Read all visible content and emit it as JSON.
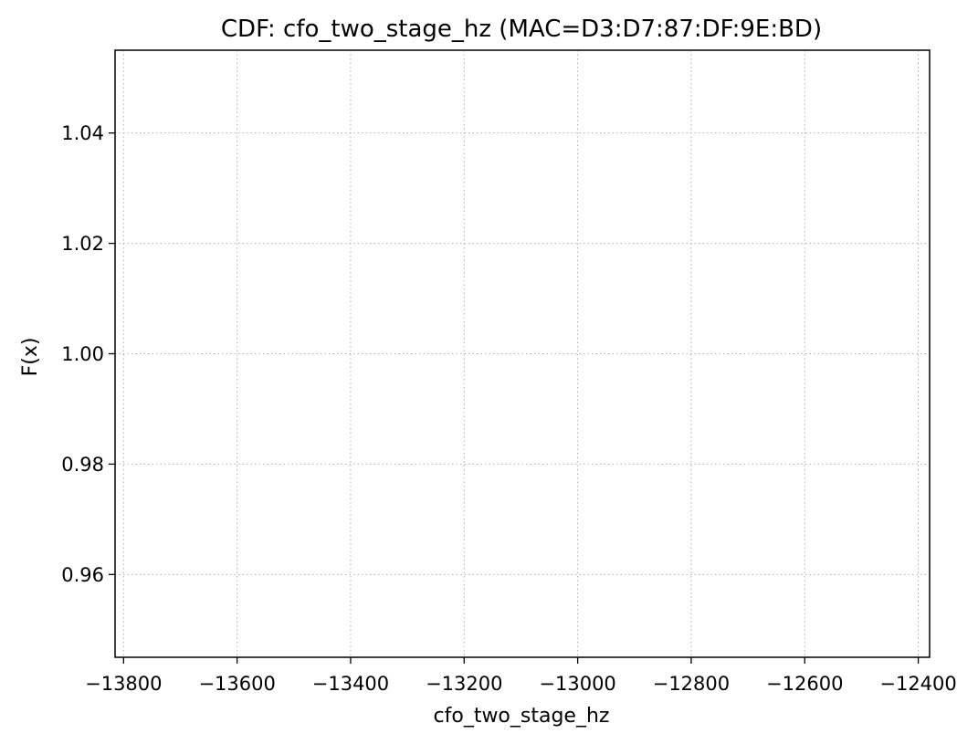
{
  "chart_data": {
    "type": "line",
    "title": "CDF: cfo_two_stage_hz (MAC=D3:D7:87:DF:9E:BD)",
    "xlabel": "cfo_two_stage_hz",
    "ylabel": "F(x)",
    "xlim": [
      -13815,
      -12380
    ],
    "ylim": [
      0.945,
      1.055
    ],
    "xticks": [
      -13800,
      -13600,
      -13400,
      -13200,
      -13000,
      -12800,
      -12600,
      -12400
    ],
    "xtick_labels": [
      "−13800",
      "−13600",
      "−13400",
      "−13200",
      "−13000",
      "−12800",
      "−12600",
      "−12400"
    ],
    "yticks": [
      0.96,
      0.98,
      1.0,
      1.02,
      1.04
    ],
    "ytick_labels": [
      "0.96",
      "0.98",
      "1.00",
      "1.02",
      "1.04"
    ],
    "grid": true,
    "series": []
  }
}
